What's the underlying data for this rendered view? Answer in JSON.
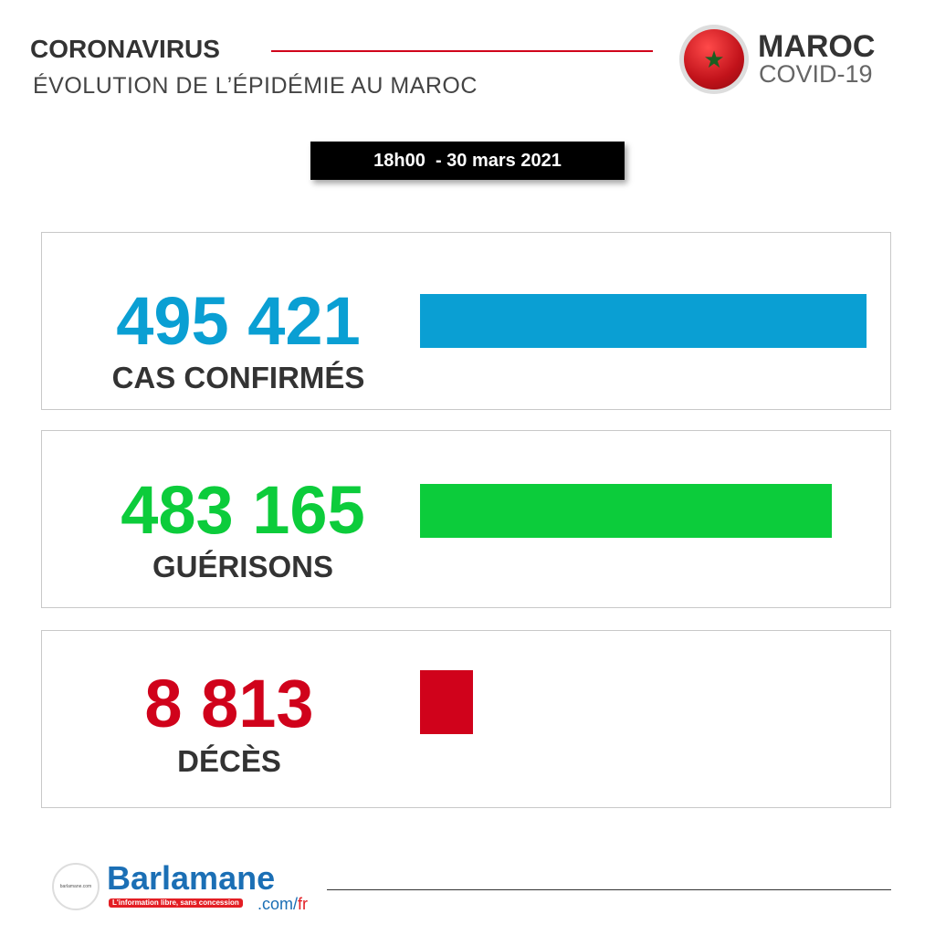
{
  "header": {
    "title": "CORONAVIRUS",
    "subtitle": "ÉVOLUTION DE L’ÉPIDÉMIE AU MAROC",
    "badge_title": "MAROC",
    "badge_subtitle": "COVID-19",
    "flag_icon": "morocco-flag-icon"
  },
  "date": "18h00  - 30 mars 2021",
  "stats": [
    {
      "value": "495 421",
      "label": "CAS CONFIRMÉS",
      "color": "#0a9fd3"
    },
    {
      "value": "483 165",
      "label": "GUÉRISONS",
      "color": "#0ccc3b"
    },
    {
      "value": "8 813",
      "label": "DÉCÈS",
      "color": "#d0021b"
    }
  ],
  "footer": {
    "brand": "Barlamane",
    "tagline": "L'information libre, sans concession",
    "domain": ".com/",
    "domain_suffix": "fr"
  }
}
